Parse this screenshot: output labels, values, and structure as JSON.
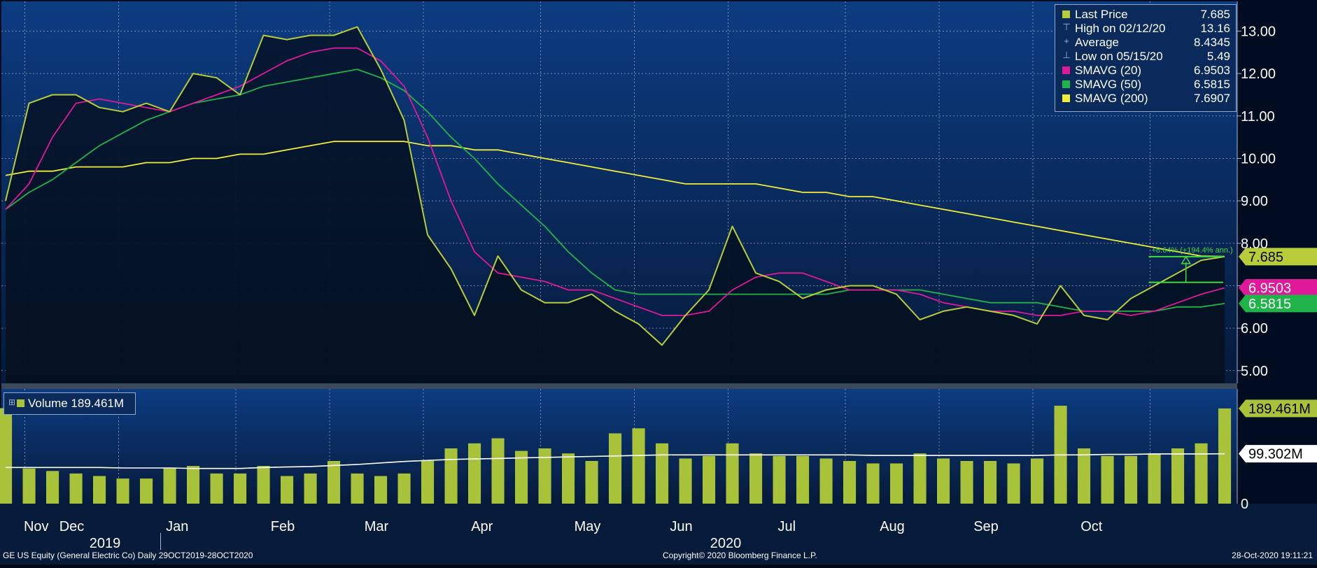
{
  "colors": {
    "price": "#b8cc3a",
    "sma20": "#e0189a",
    "sma50": "#1fb34a",
    "sma200": "#f2ec3a",
    "volume": "#a8c23a",
    "volume_avg": "#ffffff",
    "panel_top": "#0c3c82",
    "panel_bottom": "#061a3a",
    "grid": "#9fb4d6"
  },
  "legend": {
    "rows": [
      {
        "label": "Last Price",
        "value": "7.685",
        "glyph": "swatch",
        "color_key": "price"
      },
      {
        "label": "High on 02/12/20",
        "value": "13.16",
        "glyph": "T-icon"
      },
      {
        "label": "Average",
        "value": "8.4345",
        "glyph": "plus-icon"
      },
      {
        "label": "Low on 05/15/20",
        "value": "5.49",
        "glyph": "inverted-T-icon"
      },
      {
        "label": "SMAVG (20)",
        "value": "6.9503",
        "glyph": "swatch",
        "color_key": "sma20"
      },
      {
        "label": "SMAVG (50)",
        "value": "6.5815",
        "glyph": "swatch",
        "color_key": "sma50"
      },
      {
        "label": "SMAVG (200)",
        "value": "7.6907",
        "glyph": "swatch",
        "color_key": "sma200"
      }
    ]
  },
  "volume_legend": {
    "label": "Volume 189.461M"
  },
  "price_axis": {
    "ticks": [
      {
        "value": 13,
        "label": "13.00"
      },
      {
        "value": 12,
        "label": "12.00"
      },
      {
        "value": 11,
        "label": "11.00"
      },
      {
        "value": 10,
        "label": "10.00"
      },
      {
        "value": 9,
        "label": "9.00"
      },
      {
        "value": 8,
        "label": "8.00"
      },
      {
        "value": 7,
        "label": ""
      },
      {
        "value": 6,
        "label": "6.00"
      },
      {
        "value": 5,
        "label": "5.00"
      }
    ],
    "tags": [
      {
        "value": 7.685,
        "label": "7.685",
        "color_key": "price",
        "text_color": "#000000"
      },
      {
        "value": 6.9503,
        "label": "6.9503",
        "color_key": "sma20",
        "text_color": "#ffffff"
      },
      {
        "value": 6.5815,
        "label": "6.5815",
        "color_key": "sma50",
        "text_color": "#ffffff"
      }
    ]
  },
  "volume_axis": {
    "ticks": [
      {
        "value": 0,
        "label": "0"
      }
    ],
    "tags": [
      {
        "value": 189.461,
        "label": "189.461M",
        "color_key": "volume",
        "text_color": "#000000"
      },
      {
        "value": 99.302,
        "label": "99.302M",
        "color_key": "volume_avg",
        "text_color": "#000000"
      }
    ]
  },
  "x_axis": {
    "months": [
      "Nov",
      "Dec",
      "Jan",
      "Feb",
      "Mar",
      "Apr",
      "May",
      "Jun",
      "Jul",
      "Aug",
      "Sep",
      "Oct"
    ],
    "years": [
      "2019",
      "2020"
    ]
  },
  "annotation": {
    "text": "+8.64% (+194.4% ann.)"
  },
  "footer": {
    "left": "GE US Equity (General Electric Co)  Daily 29OCT2019-28OCT2020",
    "center": "Copyright© 2020 Bloomberg Finance L.P.",
    "right": "28-Oct-2020 19:11:21"
  },
  "chart_data": {
    "type": "line",
    "title": "GE US Equity (General Electric Co)",
    "x": [
      "2019-10-29",
      "2019-11-05",
      "2019-11-12",
      "2019-11-19",
      "2019-11-26",
      "2019-12-03",
      "2019-12-10",
      "2019-12-17",
      "2019-12-24",
      "2019-12-31",
      "2020-01-07",
      "2020-01-14",
      "2020-01-21",
      "2020-01-28",
      "2020-02-04",
      "2020-02-11",
      "2020-02-18",
      "2020-02-25",
      "2020-03-03",
      "2020-03-10",
      "2020-03-17",
      "2020-03-24",
      "2020-03-31",
      "2020-04-07",
      "2020-04-14",
      "2020-04-21",
      "2020-04-28",
      "2020-05-05",
      "2020-05-12",
      "2020-05-19",
      "2020-05-26",
      "2020-06-02",
      "2020-06-09",
      "2020-06-16",
      "2020-06-23",
      "2020-06-30",
      "2020-07-07",
      "2020-07-14",
      "2020-07-21",
      "2020-07-28",
      "2020-08-04",
      "2020-08-11",
      "2020-08-18",
      "2020-08-25",
      "2020-09-01",
      "2020-09-08",
      "2020-09-15",
      "2020-09-22",
      "2020-09-29",
      "2020-10-06",
      "2020-10-13",
      "2020-10-20",
      "2020-10-28"
    ],
    "series": [
      {
        "name": "Last Price",
        "color_key": "price",
        "values": [
          9.0,
          11.3,
          11.5,
          11.5,
          11.2,
          11.1,
          11.3,
          11.1,
          12.0,
          11.9,
          11.5,
          12.9,
          12.8,
          12.9,
          12.9,
          13.1,
          12.1,
          10.9,
          8.2,
          7.4,
          6.3,
          7.7,
          6.9,
          6.6,
          6.6,
          6.8,
          6.4,
          6.1,
          5.6,
          6.3,
          6.9,
          8.4,
          7.3,
          7.1,
          6.7,
          6.9,
          7.0,
          7.0,
          6.8,
          6.2,
          6.4,
          6.5,
          6.4,
          6.3,
          6.1,
          7.0,
          6.3,
          6.2,
          6.7,
          7.0,
          7.3,
          7.6,
          7.685
        ]
      },
      {
        "name": "SMAVG (20)",
        "color_key": "sma20",
        "values": [
          8.8,
          9.4,
          10.5,
          11.3,
          11.4,
          11.3,
          11.2,
          11.1,
          11.3,
          11.5,
          11.7,
          12.0,
          12.3,
          12.5,
          12.6,
          12.6,
          12.3,
          11.7,
          10.5,
          9.0,
          7.8,
          7.3,
          7.2,
          7.1,
          6.9,
          6.9,
          6.7,
          6.5,
          6.3,
          6.3,
          6.4,
          6.9,
          7.2,
          7.3,
          7.3,
          7.1,
          6.9,
          6.9,
          6.9,
          6.8,
          6.6,
          6.5,
          6.4,
          6.4,
          6.3,
          6.3,
          6.4,
          6.4,
          6.3,
          6.4,
          6.6,
          6.8,
          6.9503
        ]
      },
      {
        "name": "SMAVG (50)",
        "color_key": "sma50",
        "values": [
          8.8,
          9.2,
          9.5,
          9.9,
          10.3,
          10.6,
          10.9,
          11.1,
          11.3,
          11.4,
          11.5,
          11.7,
          11.8,
          11.9,
          12.0,
          12.1,
          11.9,
          11.6,
          11.1,
          10.5,
          10.0,
          9.4,
          8.9,
          8.4,
          7.8,
          7.3,
          6.9,
          6.8,
          6.8,
          6.8,
          6.8,
          6.8,
          6.8,
          6.8,
          6.8,
          6.8,
          6.9,
          6.9,
          6.9,
          6.9,
          6.8,
          6.7,
          6.6,
          6.6,
          6.6,
          6.5,
          6.4,
          6.4,
          6.4,
          6.4,
          6.5,
          6.5,
          6.5815
        ]
      },
      {
        "name": "SMAVG (200)",
        "color_key": "sma200",
        "values": [
          9.6,
          9.7,
          9.7,
          9.8,
          9.8,
          9.8,
          9.9,
          9.9,
          10.0,
          10.0,
          10.1,
          10.1,
          10.2,
          10.3,
          10.4,
          10.4,
          10.4,
          10.4,
          10.3,
          10.3,
          10.2,
          10.2,
          10.1,
          10.0,
          9.9,
          9.8,
          9.7,
          9.6,
          9.5,
          9.4,
          9.4,
          9.4,
          9.4,
          9.3,
          9.2,
          9.2,
          9.1,
          9.1,
          9.0,
          8.9,
          8.8,
          8.7,
          8.6,
          8.5,
          8.4,
          8.3,
          8.2,
          8.1,
          8.0,
          7.9,
          7.8,
          7.7,
          7.6907
        ]
      }
    ],
    "volume": {
      "name": "Volume",
      "values": [
        190,
        70,
        65,
        60,
        55,
        50,
        50,
        70,
        75,
        60,
        60,
        75,
        55,
        60,
        85,
        60,
        55,
        60,
        85,
        110,
        120,
        130,
        105,
        110,
        100,
        85,
        140,
        150,
        120,
        90,
        95,
        120,
        100,
        95,
        95,
        90,
        85,
        80,
        80,
        100,
        90,
        85,
        85,
        80,
        90,
        195,
        110,
        95,
        95,
        100,
        110,
        120,
        189.461
      ],
      "avg_values": [
        72,
        72,
        72,
        72,
        72,
        71,
        71,
        71,
        70,
        70,
        70,
        72,
        73,
        74,
        76,
        78,
        81,
        84,
        86,
        88,
        89,
        90,
        91,
        92,
        93,
        94,
        95,
        96,
        97,
        97,
        97,
        97,
        97,
        97,
        97,
        97,
        97,
        96,
        96,
        96,
        96,
        96,
        96,
        96,
        96,
        97,
        97,
        98,
        98,
        99,
        99,
        99,
        99.302
      ]
    },
    "ylim": [
      4.7,
      13.7
    ],
    "ylabel": "",
    "xlabel": ""
  }
}
